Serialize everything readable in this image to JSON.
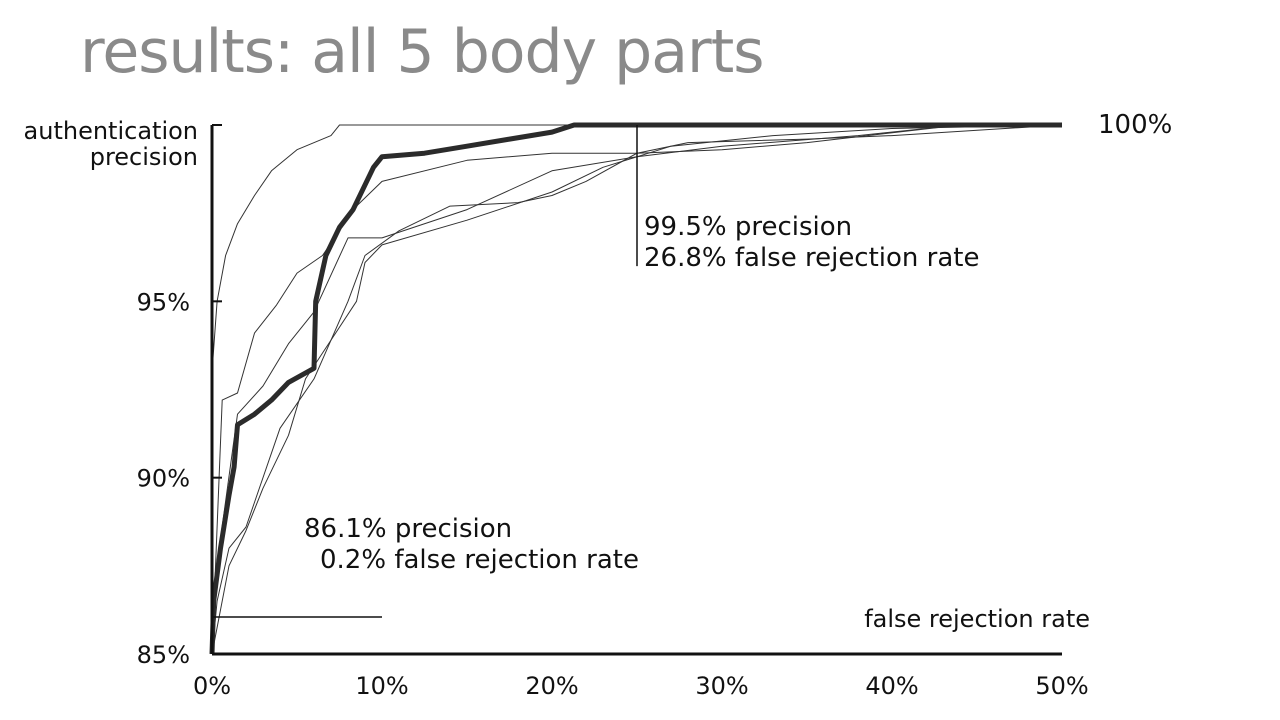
{
  "slide": {
    "title": "results: all 5 body parts"
  },
  "chart_data": {
    "type": "line",
    "xlabel": "false rejection rate",
    "ylabel": [
      "authentication",
      "precision"
    ],
    "xlim": [
      0,
      50
    ],
    "ylim": [
      85,
      100
    ],
    "x_ticks": [
      "0%",
      "10%",
      "20%",
      "30%",
      "40%",
      "50%"
    ],
    "y_ticks": [
      "85%",
      "90%",
      "95%",
      "100%"
    ],
    "grid": false,
    "series": [
      {
        "highlight": true,
        "points": [
          [
            0,
            85
          ],
          [
            0.1,
            86.5
          ],
          [
            0.5,
            88
          ],
          [
            1,
            89.5
          ],
          [
            1.3,
            90.3
          ],
          [
            1.5,
            91.5
          ],
          [
            2.5,
            91.8
          ],
          [
            3.5,
            92.2
          ],
          [
            4.5,
            92.7
          ],
          [
            6,
            93.1
          ],
          [
            6.1,
            95
          ],
          [
            6.7,
            96.3
          ],
          [
            7.5,
            97.1
          ],
          [
            8.3,
            97.6
          ],
          [
            9.5,
            98.8
          ],
          [
            10,
            99.1
          ],
          [
            12.5,
            99.2
          ],
          [
            15,
            99.4
          ],
          [
            17.5,
            99.6
          ],
          [
            20,
            99.8
          ],
          [
            21.3,
            100
          ],
          [
            50,
            100
          ]
        ]
      },
      {
        "highlight": false,
        "points": [
          [
            0,
            93
          ],
          [
            0.3,
            95
          ],
          [
            0.8,
            96.3
          ],
          [
            1.5,
            97.2
          ],
          [
            2.5,
            98
          ],
          [
            3.5,
            98.7
          ],
          [
            5,
            99.3
          ],
          [
            7,
            99.7
          ],
          [
            7.5,
            100
          ],
          [
            50,
            100
          ]
        ]
      },
      {
        "highlight": false,
        "points": [
          [
            0,
            85
          ],
          [
            0.6,
            92.2
          ],
          [
            1.5,
            92.4
          ],
          [
            2.5,
            94.1
          ],
          [
            3.8,
            94.9
          ],
          [
            5,
            95.8
          ],
          [
            6.5,
            96.3
          ],
          [
            8.5,
            97.7
          ],
          [
            10,
            98.4
          ],
          [
            15,
            99
          ],
          [
            20,
            99.2
          ],
          [
            25,
            99.2
          ],
          [
            30,
            99.3
          ],
          [
            35,
            99.5
          ],
          [
            44,
            100
          ],
          [
            50,
            100
          ]
        ]
      },
      {
        "highlight": false,
        "points": [
          [
            0,
            86.5
          ],
          [
            1.5,
            91.8
          ],
          [
            3,
            92.6
          ],
          [
            4.5,
            93.8
          ],
          [
            6,
            94.7
          ],
          [
            8,
            96.8
          ],
          [
            10,
            96.8
          ],
          [
            15,
            97.6
          ],
          [
            20,
            98.7
          ],
          [
            25,
            99.1
          ],
          [
            30,
            99.4
          ],
          [
            38,
            99.7
          ],
          [
            44,
            100
          ],
          [
            50,
            100
          ]
        ]
      },
      {
        "highlight": false,
        "points": [
          [
            0,
            85
          ],
          [
            1,
            87.5
          ],
          [
            2,
            88.5
          ],
          [
            3,
            89.7
          ],
          [
            4.5,
            91.2
          ],
          [
            5.5,
            92.8
          ],
          [
            7,
            93.9
          ],
          [
            8.5,
            95
          ],
          [
            9,
            96.1
          ],
          [
            10,
            96.6
          ],
          [
            15,
            97.3
          ],
          [
            20,
            98.1
          ],
          [
            23,
            98.8
          ],
          [
            27,
            99.4
          ],
          [
            33,
            99.7
          ],
          [
            40,
            99.9
          ],
          [
            50,
            100
          ]
        ]
      },
      {
        "highlight": false,
        "points": [
          [
            0,
            85
          ],
          [
            0.3,
            86.5
          ],
          [
            1,
            88
          ],
          [
            2,
            88.6
          ],
          [
            4,
            91.4
          ],
          [
            6,
            92.8
          ],
          [
            8,
            95
          ],
          [
            9,
            96.3
          ],
          [
            11,
            97
          ],
          [
            14,
            97.7
          ],
          [
            18,
            97.8
          ],
          [
            20,
            98
          ],
          [
            22,
            98.4
          ],
          [
            25,
            99.2
          ],
          [
            28,
            99.5
          ],
          [
            35,
            99.6
          ],
          [
            40,
            99.7
          ],
          [
            50,
            100
          ]
        ]
      }
    ],
    "annotations": [
      {
        "lines": [
          "99.5% precision",
          "26.8% false rejection rate"
        ]
      },
      {
        "lines": [
          "86.1% precision",
          "0.2% false rejection rate"
        ]
      }
    ],
    "y_annotation": "100%"
  }
}
